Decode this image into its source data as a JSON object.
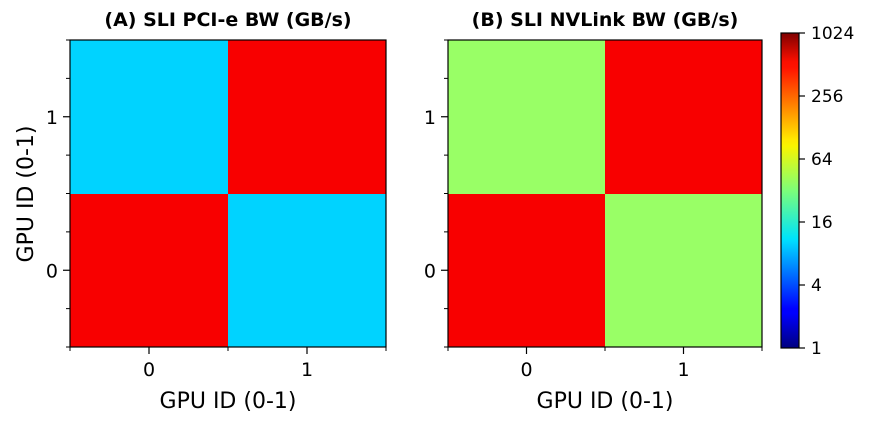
{
  "chart_data": [
    {
      "type": "heatmap",
      "title": "(A) SLI PCI-e BW (GB/s)",
      "xlabel": "GPU ID (0-1)",
      "ylabel": "GPU ID (0-1)",
      "x_ticks": [
        "0",
        "1"
      ],
      "y_ticks": [
        "0",
        "1"
      ],
      "color_scale": "log2",
      "cells": [
        {
          "x": 0,
          "y": 0,
          "value": 450
        },
        {
          "x": 1,
          "y": 0,
          "value": 10
        },
        {
          "x": 0,
          "y": 1,
          "value": 10
        },
        {
          "x": 1,
          "y": 1,
          "value": 450
        }
      ]
    },
    {
      "type": "heatmap",
      "title": "(B) SLI NVLink BW (GB/s)",
      "xlabel": "GPU ID (0-1)",
      "ylabel": "",
      "x_ticks": [
        "0",
        "1"
      ],
      "y_ticks": [
        "0",
        "1"
      ],
      "color_scale": "log2",
      "cells": [
        {
          "x": 0,
          "y": 0,
          "value": 450
        },
        {
          "x": 1,
          "y": 0,
          "value": 38
        },
        {
          "x": 0,
          "y": 1,
          "value": 38
        },
        {
          "x": 1,
          "y": 1,
          "value": 450
        }
      ]
    }
  ],
  "colorbar": {
    "ticks": [
      "1",
      "4",
      "16",
      "64",
      "256",
      "1024"
    ],
    "min": 1,
    "max": 1024,
    "colormap": "jet",
    "scale": "log2"
  }
}
